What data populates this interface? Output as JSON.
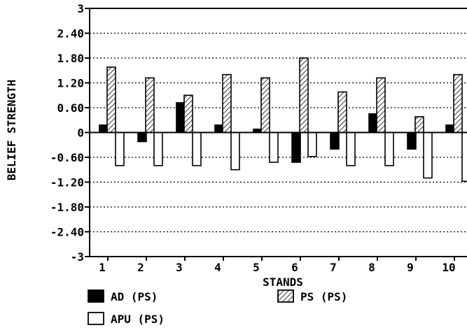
{
  "chart_data": {
    "type": "bar",
    "xlabel": "STANDS",
    "ylabel": "BELIEF STRENGTH",
    "categories": [
      "1",
      "2",
      "3",
      "4",
      "5",
      "6",
      "7",
      "8",
      "9",
      "10"
    ],
    "ylim": [
      -3,
      3
    ],
    "yticks": [
      "3",
      "2.40",
      "1.80",
      "1.20",
      "0.60",
      "0",
      "-0.60",
      "-1.20",
      "-1.80",
      "-2.40",
      "-3"
    ],
    "ytick_values": [
      3,
      2.4,
      1.8,
      1.2,
      0.6,
      0,
      -0.6,
      -1.2,
      -1.8,
      -2.4,
      -3
    ],
    "grid": true,
    "legend_position": "bottom",
    "series": [
      {
        "name": "AD (PS)",
        "fill": "solid",
        "values": [
          0.18,
          -0.22,
          0.72,
          0.18,
          0.08,
          -0.72,
          -0.4,
          0.45,
          -0.4,
          0.18
        ]
      },
      {
        "name": "PS (PS)",
        "fill": "hatched",
        "values": [
          1.58,
          1.32,
          0.9,
          1.4,
          1.32,
          1.8,
          0.98,
          1.32,
          0.38,
          1.4
        ]
      },
      {
        "name": "APU (PS)",
        "fill": "hollow",
        "values": [
          -0.8,
          -0.8,
          -0.8,
          -0.9,
          -0.72,
          -0.58,
          -0.8,
          -0.8,
          -1.1,
          -1.18
        ]
      }
    ]
  }
}
